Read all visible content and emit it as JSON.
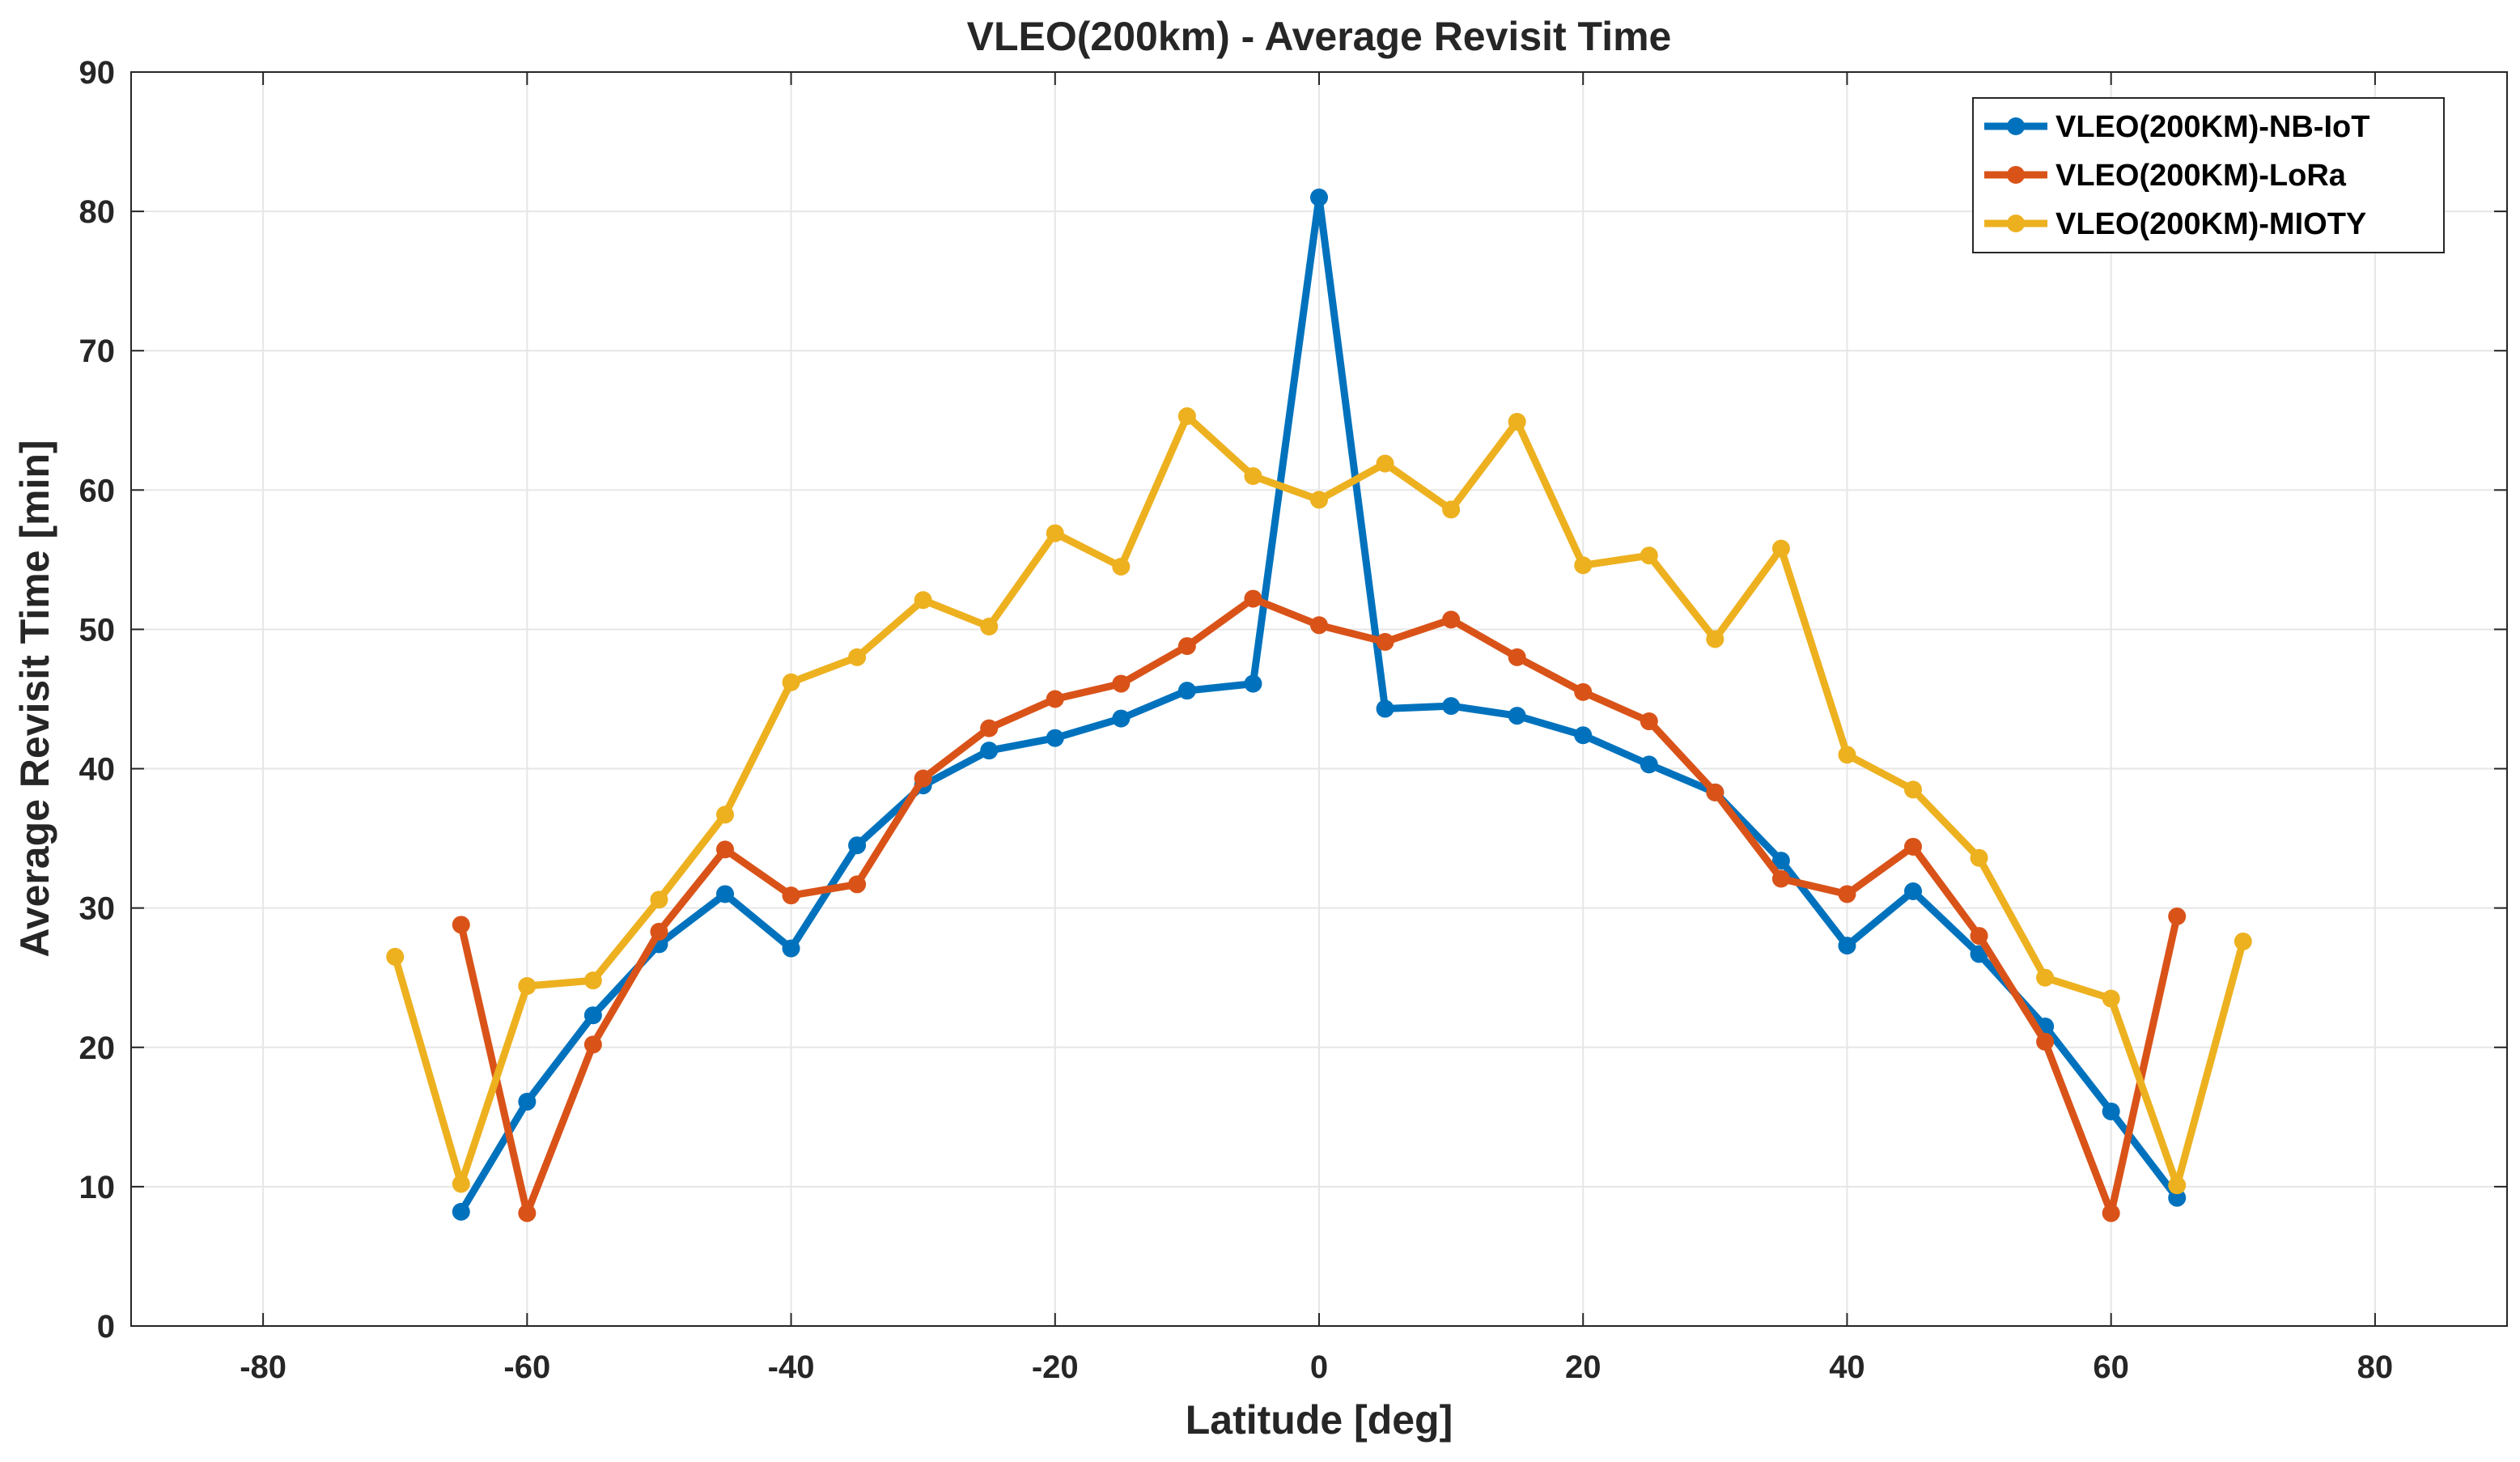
{
  "chart_data": {
    "type": "line",
    "title": "VLEO(200km) - Average Revisit Time",
    "xlabel": "Latitude [deg]",
    "ylabel": "Average Revisit Time [min]",
    "xlim": [
      -90,
      90
    ],
    "ylim": [
      0,
      90
    ],
    "xticks": [
      -80,
      -60,
      -40,
      -20,
      0,
      20,
      40,
      60,
      80
    ],
    "yticks": [
      0,
      10,
      20,
      30,
      40,
      50,
      60,
      70,
      80,
      90
    ],
    "grid": true,
    "legend_position": "top-right",
    "series": [
      {
        "name": "VLEO(200KM)-NB-IoT",
        "color": "#0072BD",
        "points": [
          [
            -65,
            8.2
          ],
          [
            -60,
            16.1
          ],
          [
            -55,
            22.3
          ],
          [
            -50,
            27.4
          ],
          [
            -45,
            31.0
          ],
          [
            -40,
            27.1
          ],
          [
            -35,
            34.5
          ],
          [
            -30,
            38.8
          ],
          [
            -25,
            41.3
          ],
          [
            -20,
            42.2
          ],
          [
            -15,
            43.6
          ],
          [
            -10,
            45.6
          ],
          [
            -5,
            46.1
          ],
          [
            0,
            81.0
          ],
          [
            5,
            44.3
          ],
          [
            10,
            44.5
          ],
          [
            15,
            43.8
          ],
          [
            20,
            42.4
          ],
          [
            25,
            40.3
          ],
          [
            30,
            38.3
          ],
          [
            35,
            33.4
          ],
          [
            40,
            27.3
          ],
          [
            45,
            31.2
          ],
          [
            50,
            26.7
          ],
          [
            55,
            21.5
          ],
          [
            60,
            15.4
          ],
          [
            65,
            9.2
          ]
        ]
      },
      {
        "name": "VLEO(200KM)-LoRa",
        "color": "#D95319",
        "points": [
          [
            -65,
            28.8
          ],
          [
            -60,
            8.1
          ],
          [
            -55,
            20.2
          ],
          [
            -50,
            28.3
          ],
          [
            -45,
            34.2
          ],
          [
            -40,
            30.9
          ],
          [
            -35,
            31.7
          ],
          [
            -30,
            39.3
          ],
          [
            -25,
            42.9
          ],
          [
            -20,
            45.0
          ],
          [
            -15,
            46.1
          ],
          [
            -10,
            48.8
          ],
          [
            -5,
            52.2
          ],
          [
            0,
            50.3
          ],
          [
            5,
            49.1
          ],
          [
            10,
            50.7
          ],
          [
            15,
            48.0
          ],
          [
            20,
            45.5
          ],
          [
            25,
            43.4
          ],
          [
            30,
            38.3
          ],
          [
            35,
            32.1
          ],
          [
            40,
            31.0
          ],
          [
            45,
            34.4
          ],
          [
            50,
            28.0
          ],
          [
            55,
            20.4
          ],
          [
            60,
            8.1
          ],
          [
            65,
            29.4
          ]
        ]
      },
      {
        "name": "VLEO(200KM)-MIOTY",
        "color": "#EDB120",
        "points": [
          [
            -70,
            26.5
          ],
          [
            -65,
            10.2
          ],
          [
            -60,
            24.4
          ],
          [
            -55,
            24.8
          ],
          [
            -50,
            30.6
          ],
          [
            -45,
            36.7
          ],
          [
            -40,
            46.2
          ],
          [
            -35,
            48.0
          ],
          [
            -30,
            52.1
          ],
          [
            -25,
            50.2
          ],
          [
            -20,
            56.9
          ],
          [
            -15,
            54.5
          ],
          [
            -10,
            65.3
          ],
          [
            -5,
            61.0
          ],
          [
            0,
            59.3
          ],
          [
            5,
            61.9
          ],
          [
            10,
            58.6
          ],
          [
            15,
            64.9
          ],
          [
            20,
            54.6
          ],
          [
            25,
            55.3
          ],
          [
            30,
            49.3
          ],
          [
            35,
            55.8
          ],
          [
            40,
            41.0
          ],
          [
            45,
            38.5
          ],
          [
            50,
            33.6
          ],
          [
            55,
            25.0
          ],
          [
            60,
            23.5
          ],
          [
            65,
            10.1
          ],
          [
            70,
            27.6
          ]
        ]
      }
    ]
  }
}
